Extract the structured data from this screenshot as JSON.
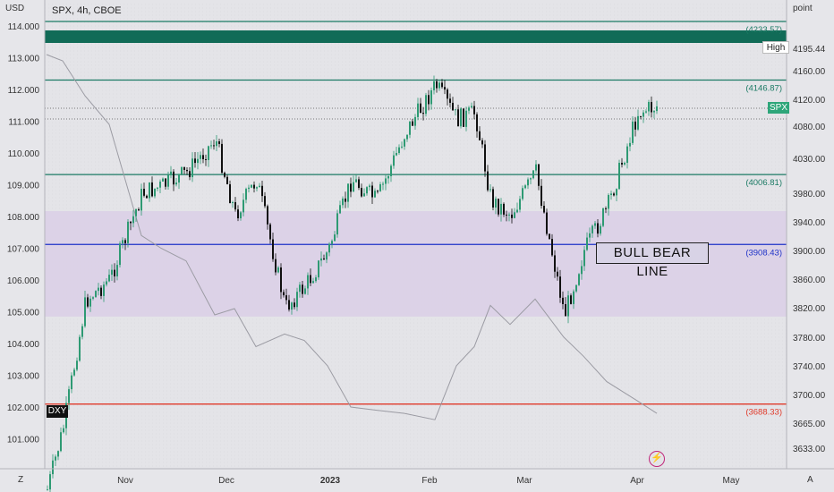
{
  "header": {
    "left_unit": "USD",
    "right_unit": "point",
    "symbol": "SPX, 4h, CBOE"
  },
  "footer": {
    "left": "Z",
    "right": "A"
  },
  "colors": {
    "teal": "#1b7a64",
    "bull": "#2e9a73",
    "bear": "#111111",
    "blue": "#1f33c8",
    "red": "#e03a2a",
    "band": "#dbcfe6"
  },
  "annotation": {
    "text": "BULL BEAR LINE"
  },
  "tags": {
    "spx": "SPX",
    "high_label": "High",
    "dxy": "DXY"
  },
  "icons": {
    "bolt": "lightning-icon"
  },
  "chart_data": {
    "type": "line",
    "left_axis": {
      "label": "USD",
      "ticks": [
        "114.000",
        "113.000",
        "112.000",
        "111.000",
        "110.000",
        "109.000",
        "108.000",
        "107.000",
        "106.000",
        "105.000",
        "104.000",
        "103.000",
        "102.000",
        "101.000"
      ],
      "min": 100.2,
      "max": 114.3
    },
    "right_axis": {
      "label": "point",
      "ticks": [
        "4160.00",
        "4120.00",
        "4080.00",
        "4030.00",
        "3980.00",
        "3940.00",
        "3900.00",
        "3860.00",
        "3820.00",
        "3780.00",
        "3740.00",
        "3700.00",
        "3665.00",
        "3633.00"
      ],
      "high_value": "4195.44"
    },
    "x_labels": [
      "Nov",
      "Dec",
      "2023",
      "Feb",
      "Mar",
      "Apr",
      "May"
    ],
    "levels": [
      {
        "value": 4233.57,
        "label": "(4233.57)",
        "color": "#1b7a64"
      },
      {
        "value": 4146.87,
        "label": "(4146.87)",
        "color": "#1b7a64"
      },
      {
        "value": 4006.81,
        "label": "(4006.81)",
        "color": "#1b7a64"
      },
      {
        "value": 3908.43,
        "label": "(3908.43)",
        "color": "#1f33c8"
      },
      {
        "value": 3688.33,
        "label": "(3688.33)",
        "color": "#e03a2a"
      }
    ],
    "spx_series": {
      "name": "SPX",
      "x": [
        "Oct 13",
        "Oct 21",
        "Oct 28",
        "Nov 4",
        "Nov 10",
        "Nov 18",
        "Nov 25",
        "Dec 1",
        "Dec 6",
        "Dec 13",
        "Dec 20",
        "Dec 28",
        "Jan 6",
        "Jan 13",
        "Jan 20",
        "Jan 27",
        "Feb 2",
        "Feb 10",
        "Feb 17",
        "Feb 24",
        "Mar 1",
        "Mar 8",
        "Mar 13",
        "Mar 17",
        "Mar 24",
        "Mar 31",
        "Apr 6"
      ],
      "y": [
        3580,
        3660,
        3830,
        3860,
        3980,
        3990,
        4010,
        4060,
        3950,
        4000,
        3820,
        3850,
        3900,
        4000,
        3970,
        4070,
        4180,
        4090,
        4100,
        3970,
        3950,
        4010,
        3810,
        3900,
        3960,
        4100,
        4110
      ]
    },
    "dxy_series": {
      "name": "DXY",
      "x": [
        "Oct 13",
        "Oct 21",
        "Oct 28",
        "Nov 4",
        "Nov 10",
        "Nov 18",
        "Nov 25",
        "Dec 1",
        "Dec 6",
        "Dec 13",
        "Dec 20",
        "Dec 28",
        "Jan 6",
        "Jan 13",
        "Jan 20",
        "Jan 27",
        "Feb 2",
        "Feb 10",
        "Feb 17",
        "Feb 24",
        "Mar 1",
        "Mar 8",
        "Mar 13",
        "Mar 17",
        "Mar 24",
        "Mar 31",
        "Apr 6"
      ],
      "y": [
        113.1,
        112.9,
        111.8,
        110.9,
        107.4,
        107.0,
        106.6,
        104.9,
        105.1,
        103.9,
        104.3,
        104.1,
        103.3,
        102.0,
        101.9,
        101.8,
        101.6,
        103.3,
        103.9,
        105.2,
        104.6,
        105.4,
        104.2,
        103.6,
        102.8,
        102.2,
        101.8
      ]
    },
    "price_band": {
      "from": 3808,
      "to": 3955
    },
    "grid": true
  }
}
